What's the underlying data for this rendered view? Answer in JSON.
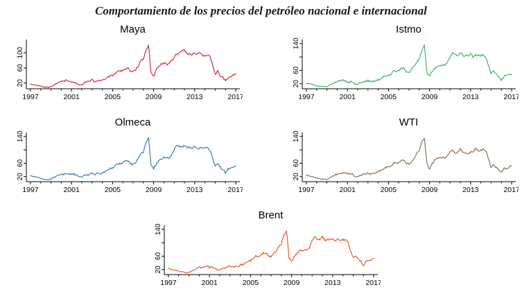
{
  "figure_title": "Comportamiento de los precios del petróleo nacional e internacional",
  "chart_data": [
    {
      "type": "line",
      "title": "Maya",
      "color": "#d0232e",
      "xlabel": "",
      "ylabel": "",
      "x_start": 1997,
      "x_step": 0.25,
      "xlim": [
        1996.6,
        2017.4
      ],
      "ylim": [
        5,
        135
      ],
      "xticks": [
        1997,
        2001,
        2005,
        2009,
        2013,
        2017
      ],
      "ytick_values": [
        20,
        60,
        100
      ],
      "ytick_labels": [
        "20",
        "60",
        "100"
      ],
      "noise": 2.5,
      "seed": 3,
      "values": [
        18,
        16,
        14,
        13,
        11,
        10,
        9,
        9,
        10,
        14,
        18,
        22,
        25,
        25,
        27,
        26,
        22,
        22,
        20,
        15,
        15,
        21,
        24,
        25,
        28,
        23,
        25,
        26,
        29,
        31,
        35,
        39,
        40,
        44,
        53,
        52,
        53,
        58,
        59,
        51,
        50,
        56,
        65,
        80,
        84,
        105,
        120,
        48,
        38,
        54,
        63,
        70,
        72,
        70,
        70,
        79,
        88,
        98,
        100,
        105,
        108,
        96,
        98,
        96,
        98,
        96,
        100,
        92,
        91,
        96,
        90,
        68,
        42,
        52,
        40,
        35,
        25,
        34,
        36,
        42,
        45
      ]
    },
    {
      "type": "line",
      "title": "Istmo",
      "color": "#3fae6a",
      "xlabel": "",
      "ylabel": "",
      "x_start": 1997,
      "x_step": 0.25,
      "xlim": [
        1996.6,
        2017.4
      ],
      "ylim": [
        5,
        152
      ],
      "xticks": [
        1997,
        2001,
        2005,
        2009,
        2013,
        2017
      ],
      "ytick_values": [
        20,
        60,
        100,
        140
      ],
      "ytick_labels": [
        "20",
        "60",
        "",
        "140"
      ],
      "noise": 3,
      "seed": 5,
      "values": [
        22,
        20,
        18,
        17,
        14,
        12,
        11,
        11,
        12,
        16,
        20,
        24,
        27,
        27,
        30,
        29,
        25,
        26,
        24,
        18,
        18,
        23,
        25,
        26,
        30,
        25,
        27,
        28,
        32,
        34,
        40,
        43,
        45,
        49,
        59,
        56,
        59,
        66,
        67,
        57,
        55,
        62,
        72,
        86,
        92,
        118,
        134,
        52,
        42,
        56,
        66,
        73,
        75,
        75,
        74,
        84,
        100,
        112,
        107,
        105,
        112,
        104,
        105,
        105,
        108,
        100,
        106,
        105,
        104,
        106,
        98,
        72,
        50,
        58,
        46,
        40,
        30,
        42,
        43,
        47,
        50
      ]
    },
    {
      "type": "line",
      "title": "Olmeca",
      "color": "#3a76b5",
      "xlabel": "",
      "ylabel": "",
      "x_start": 1997,
      "x_step": 0.25,
      "xlim": [
        1996.6,
        2017.4
      ],
      "ylim": [
        5,
        152
      ],
      "xticks": [
        1997,
        2001,
        2005,
        2009,
        2013,
        2017
      ],
      "ytick_values": [
        20,
        60,
        100,
        140
      ],
      "ytick_labels": [
        "20",
        "60",
        "",
        "140"
      ],
      "noise": 3,
      "seed": 9,
      "values": [
        24,
        21,
        19,
        18,
        15,
        13,
        12,
        12,
        13,
        17,
        21,
        25,
        28,
        28,
        31,
        30,
        26,
        27,
        25,
        19,
        19,
        24,
        26,
        27,
        31,
        26,
        28,
        29,
        33,
        35,
        41,
        44,
        46,
        50,
        60,
        57,
        60,
        67,
        68,
        58,
        56,
        63,
        73,
        88,
        94,
        120,
        137,
        54,
        44,
        58,
        67,
        74,
        76,
        76,
        75,
        85,
        102,
        114,
        109,
        107,
        114,
        106,
        107,
        106,
        109,
        102,
        107,
        106,
        105,
        107,
        99,
        73,
        51,
        59,
        47,
        41,
        31,
        43,
        44,
        48,
        51
      ]
    },
    {
      "type": "line",
      "title": "WTI",
      "color": "#8a6a52",
      "xlabel": "",
      "ylabel": "",
      "x_start": 1997,
      "x_step": 0.25,
      "xlim": [
        1996.6,
        2017.4
      ],
      "ylim": [
        5,
        152
      ],
      "xticks": [
        1997,
        2001,
        2005,
        2009,
        2013,
        2017
      ],
      "ytick_values": [
        20,
        60,
        100,
        140
      ],
      "ytick_labels": [
        "20",
        "60",
        "",
        "140"
      ],
      "noise": 2.5,
      "seed": 11,
      "values": [
        25,
        22,
        20,
        19,
        16,
        14,
        13,
        12,
        12,
        16,
        20,
        24,
        28,
        28,
        31,
        32,
        28,
        27,
        26,
        20,
        20,
        25,
        27,
        28,
        32,
        28,
        30,
        31,
        35,
        38,
        43,
        48,
        48,
        52,
        62,
        60,
        62,
        70,
        70,
        60,
        58,
        64,
        74,
        90,
        97,
        123,
        133,
        58,
        43,
        59,
        68,
        76,
        78,
        77,
        76,
        85,
        93,
        102,
        89,
        94,
        102,
        93,
        92,
        88,
        94,
        94,
        105,
        97,
        98,
        102,
        97,
        73,
        48,
        57,
        46,
        42,
        33,
        45,
        44,
        49,
        52
      ]
    },
    {
      "type": "line",
      "title": "Brent",
      "color": "#e8552a",
      "xlabel": "",
      "ylabel": "",
      "x_start": 1997,
      "x_step": 0.25,
      "xlim": [
        1996.6,
        2017.4
      ],
      "ylim": [
        5,
        152
      ],
      "xticks": [
        1997,
        2001,
        2005,
        2009,
        2013,
        2017
      ],
      "ytick_values": [
        20,
        60,
        100,
        140
      ],
      "ytick_labels": [
        "20",
        "60",
        "",
        "140"
      ],
      "noise": 3,
      "seed": 13,
      "values": [
        24,
        21,
        19,
        18,
        15,
        13,
        12,
        11,
        11,
        15,
        20,
        24,
        27,
        27,
        30,
        30,
        26,
        27,
        25,
        19,
        19,
        24,
        26,
        27,
        31,
        26,
        28,
        29,
        33,
        35,
        41,
        44,
        47,
        51,
        61,
        57,
        61,
        69,
        70,
        60,
        58,
        68,
        75,
        88,
        96,
        122,
        138,
        55,
        45,
        58,
        68,
        75,
        77,
        78,
        77,
        87,
        105,
        117,
        112,
        109,
        118,
        108,
        109,
        110,
        113,
        103,
        110,
        109,
        108,
        110,
        102,
        76,
        54,
        62,
        50,
        44,
        34,
        46,
        46,
        49,
        54
      ]
    }
  ]
}
